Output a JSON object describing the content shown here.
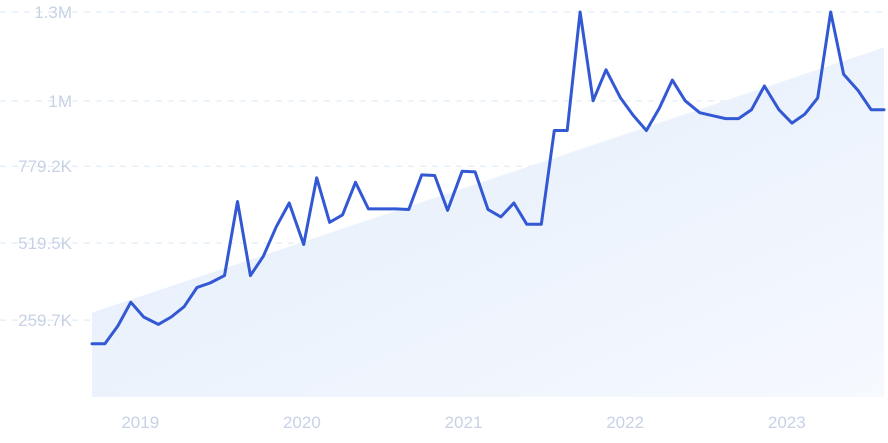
{
  "colors": {
    "line": "#3358d4",
    "area_top": "#eaf1fd",
    "area_bottom": "#dde9fb",
    "grid": "#d9e7f4",
    "tick": "#c7d2e6"
  },
  "chart_data": {
    "type": "line",
    "title": "",
    "xlabel": "",
    "ylabel": "",
    "y_ticks": [
      {
        "value": 259700,
        "label": "259.7K"
      },
      {
        "value": 519500,
        "label": "519.5K"
      },
      {
        "value": 779200,
        "label": "779.2K"
      },
      {
        "value": 1000000,
        "label": "1M"
      },
      {
        "value": 1300000,
        "label": "1.3M"
      }
    ],
    "x_ticks": [
      {
        "value": 2019,
        "label": "2019"
      },
      {
        "value": 2020,
        "label": "2020"
      },
      {
        "value": 2021,
        "label": "2021"
      },
      {
        "value": 2022,
        "label": "2022"
      },
      {
        "value": 2023,
        "label": "2023"
      }
    ],
    "xlim": [
      2018.85,
      2023.75
    ],
    "ylim": [
      0,
      1300000
    ],
    "grid": true,
    "trend": {
      "start": 285000,
      "end": 1180000
    },
    "series": [
      {
        "name": "",
        "x": [
          2018.85,
          2018.93,
          2019.01,
          2019.09,
          2019.17,
          2019.26,
          2019.34,
          2019.42,
          2019.5,
          2019.58,
          2019.67,
          2019.75,
          2019.83,
          2019.91,
          2019.99,
          2020.07,
          2020.16,
          2020.24,
          2020.32,
          2020.4,
          2020.48,
          2020.56,
          2020.65,
          2020.73,
          2020.81,
          2020.89,
          2020.97,
          2021.05,
          2021.14,
          2021.22,
          2021.3,
          2021.38,
          2021.46,
          2021.54,
          2021.63,
          2021.71,
          2021.79,
          2021.87,
          2021.95,
          2022.03,
          2022.12,
          2022.2,
          2022.28,
          2022.36,
          2022.44,
          2022.52,
          2022.61,
          2022.69,
          2022.77,
          2022.85,
          2022.93,
          2023.01,
          2023.1,
          2023.18,
          2023.26,
          2023.34,
          2023.42,
          2023.5,
          2023.59,
          2023.67,
          2023.75
        ],
        "values": [
          180000,
          180000,
          240000,
          320000,
          270000,
          245000,
          270000,
          305000,
          370000,
          385000,
          410000,
          660000,
          410000,
          475000,
          575000,
          655000,
          515000,
          740000,
          590000,
          615000,
          725000,
          635000,
          635000,
          635000,
          633000,
          750000,
          748000,
          630000,
          762000,
          760000,
          633000,
          608000,
          655000,
          583000,
          583000,
          900000,
          900000,
          1300000,
          1000000,
          1105000,
          1010000,
          950000,
          900000,
          975000,
          1070000,
          1000000,
          960000,
          950000,
          940000,
          940000,
          970000,
          1050000,
          970000,
          925000,
          955000,
          1010000,
          1300000,
          1090000,
          1035000,
          970000,
          970000
        ]
      }
    ]
  }
}
